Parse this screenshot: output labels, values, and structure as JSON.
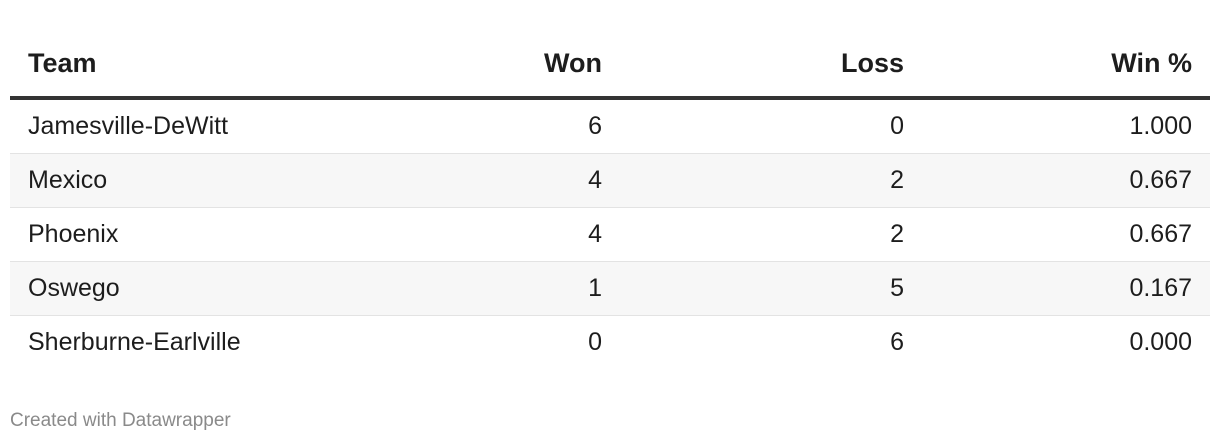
{
  "chart_data": {
    "type": "table",
    "columns": [
      "Team",
      "Won",
      "Loss",
      "Win %"
    ],
    "rows": [
      [
        "Jamesville-DeWitt",
        "6",
        "0",
        "1.000"
      ],
      [
        "Mexico",
        "4",
        "2",
        "0.667"
      ],
      [
        "Phoenix",
        "4",
        "2",
        "0.667"
      ],
      [
        "Oswego",
        "1",
        "5",
        "0.167"
      ],
      [
        "Sherburne-Earlville",
        "0",
        "6",
        "0.000"
      ]
    ]
  },
  "footer": {
    "credit": "Created with Datawrapper"
  }
}
